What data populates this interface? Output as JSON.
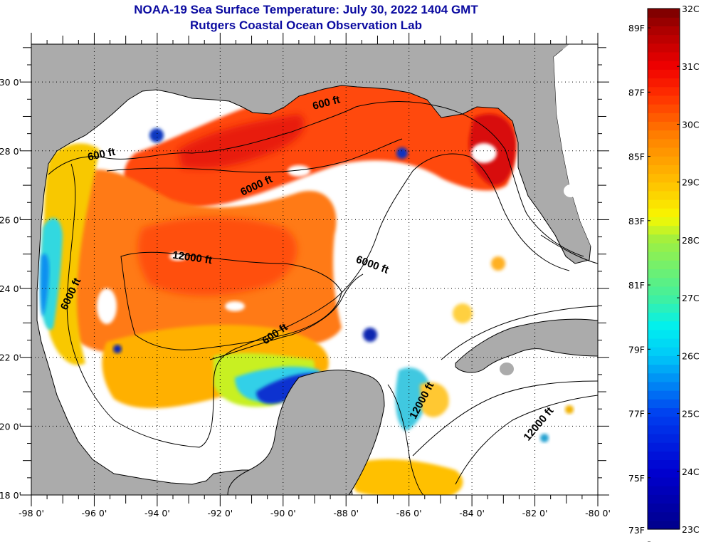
{
  "header": {
    "title": "NOAA-19 Sea Surface Temperature:  July 30, 2022 1404 GMT",
    "subtitle": "Rutgers Coastal Ocean Observation Lab"
  },
  "map": {
    "region": "Gulf of Mexico",
    "lon_range": [
      -98,
      -80
    ],
    "lat_range": [
      18,
      31.1
    ],
    "x_ticks": [
      {
        "value": -98,
        "label": "-98 0'"
      },
      {
        "value": -96,
        "label": "-96 0'"
      },
      {
        "value": -94,
        "label": "-94 0'"
      },
      {
        "value": -92,
        "label": "-92 0'"
      },
      {
        "value": -90,
        "label": "-90 0'"
      },
      {
        "value": -88,
        "label": "-88 0'"
      },
      {
        "value": -86,
        "label": "-86 0'"
      },
      {
        "value": -84,
        "label": "-84 0'"
      },
      {
        "value": -82,
        "label": "-82 0'"
      },
      {
        "value": -80,
        "label": "-80 0'"
      }
    ],
    "y_ticks": [
      {
        "value": 30,
        "label": "30 0'"
      },
      {
        "value": 28,
        "label": "28 0'"
      },
      {
        "value": 26,
        "label": "26 0'"
      },
      {
        "value": 24,
        "label": "24 0'"
      },
      {
        "value": 22,
        "label": "22 0'"
      },
      {
        "value": 20,
        "label": "20 0'"
      },
      {
        "value": 18,
        "label": "18 0'"
      }
    ],
    "contour_labels": [
      {
        "text": "600 ft",
        "lon": -95.75,
        "lat": 27.8,
        "angle": -12
      },
      {
        "text": "600 ft",
        "lon": -88.6,
        "lat": 29.3,
        "angle": -15
      },
      {
        "text": "600 ft",
        "lon": -90.2,
        "lat": 22.6,
        "angle": -35
      },
      {
        "text": "6000 ft",
        "lon": -90.8,
        "lat": 26.9,
        "angle": -25
      },
      {
        "text": "6000 ft",
        "lon": -96.65,
        "lat": 23.8,
        "angle": -65
      },
      {
        "text": "6000 ft",
        "lon": -87.2,
        "lat": 24.6,
        "angle": 20
      },
      {
        "text": "12000 ft",
        "lon": -92.9,
        "lat": 24.8,
        "angle": 8
      },
      {
        "text": "12000 ft",
        "lon": -85.5,
        "lat": 20.7,
        "angle": -62
      },
      {
        "text": "12000 ft",
        "lon": -81.8,
        "lat": 20.0,
        "angle": -50
      }
    ],
    "colors": {
      "land": "#ababab",
      "cloud": "#ffffff",
      "contour": "#000000",
      "title": "#0a0aa0"
    }
  },
  "colorbar": {
    "min_c": 23,
    "max_c": 32,
    "celsius_labels": [
      {
        "value": 32,
        "label": "32C"
      },
      {
        "value": 31,
        "label": "31C"
      },
      {
        "value": 30,
        "label": "30C"
      },
      {
        "value": 29,
        "label": "29C"
      },
      {
        "value": 28,
        "label": "28C"
      },
      {
        "value": 27,
        "label": "27C"
      },
      {
        "value": 26,
        "label": "26C"
      },
      {
        "value": 25,
        "label": "25C"
      },
      {
        "value": 24,
        "label": "24C"
      },
      {
        "value": 23,
        "label": "23C"
      }
    ],
    "fahrenheit_labels": [
      {
        "value": 89,
        "label": "89F"
      },
      {
        "value": 87,
        "label": "87F"
      },
      {
        "value": 85,
        "label": "85F"
      },
      {
        "value": 83,
        "label": "83F"
      },
      {
        "value": 81,
        "label": "81F"
      },
      {
        "value": 79,
        "label": "79F"
      },
      {
        "value": 77,
        "label": "77F"
      },
      {
        "value": 75,
        "label": "75F"
      },
      {
        "value": 73,
        "label": "73F"
      }
    ],
    "stops": [
      {
        "c": 23.0,
        "color": "#00008a"
      },
      {
        "c": 24.0,
        "color": "#0000d0"
      },
      {
        "c": 25.0,
        "color": "#0040f0"
      },
      {
        "c": 26.0,
        "color": "#00c8f8"
      },
      {
        "c": 26.5,
        "color": "#00f0f0"
      },
      {
        "c": 27.0,
        "color": "#40f0a0"
      },
      {
        "c": 28.0,
        "color": "#a0f040"
      },
      {
        "c": 28.4,
        "color": "#f8f800"
      },
      {
        "c": 29.0,
        "color": "#ffc000"
      },
      {
        "c": 29.8,
        "color": "#ff8000"
      },
      {
        "c": 30.5,
        "color": "#ff3000"
      },
      {
        "c": 31.0,
        "color": "#f00000"
      },
      {
        "c": 31.6,
        "color": "#b00000"
      },
      {
        "c": 32.0,
        "color": "#780000"
      }
    ]
  }
}
